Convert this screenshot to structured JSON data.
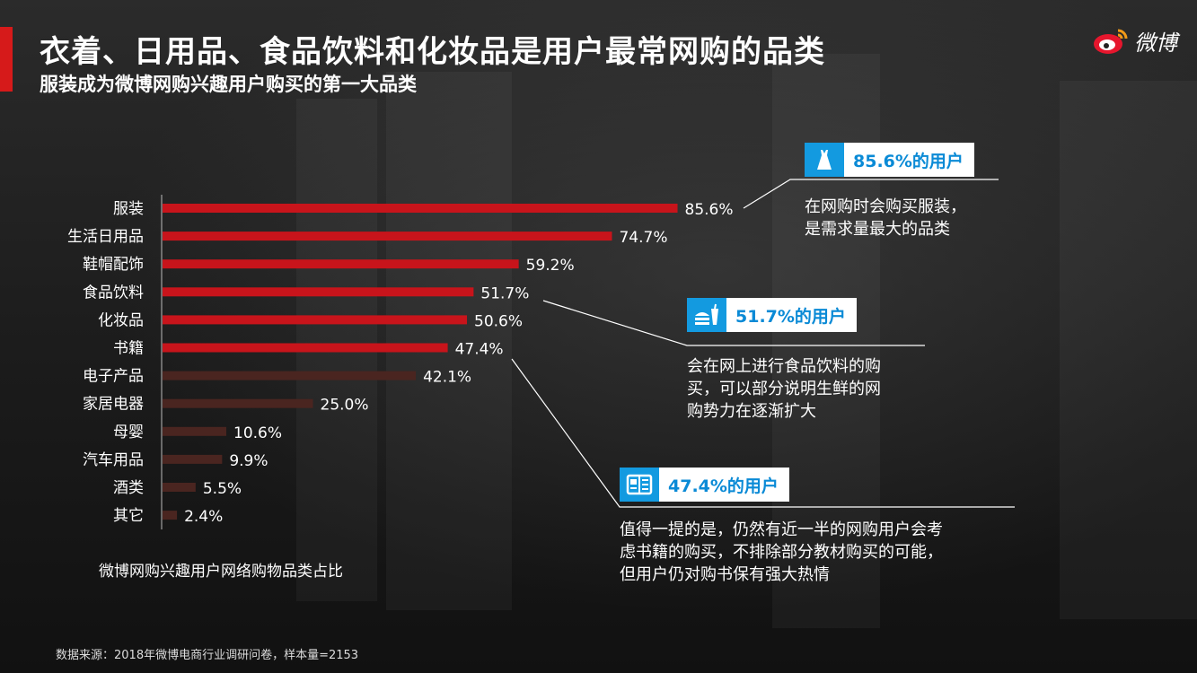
{
  "header": {
    "title": "衣着、日用品、食品饮料和化妆品是用户最常网购的品类",
    "subtitle": "服装成为微博网购兴趣用户购买的第一大品类",
    "logo_text": "微博"
  },
  "chart_data": {
    "type": "bar",
    "orientation": "horizontal",
    "title": "",
    "caption": "微博网购兴趣用户网络购物品类占比",
    "categories": [
      "服装",
      "生活日用品",
      "鞋帽配饰",
      "食品饮料",
      "化妆品",
      "书籍",
      "电子产品",
      "家居电器",
      "母婴",
      "汽车用品",
      "酒类",
      "其它"
    ],
    "values": [
      85.6,
      74.7,
      59.2,
      51.7,
      50.6,
      47.4,
      42.1,
      25.0,
      10.6,
      9.9,
      5.5,
      2.4
    ],
    "value_labels": [
      "85.6%",
      "74.7%",
      "59.2%",
      "51.7%",
      "50.6%",
      "47.4%",
      "42.1%",
      "25.0%",
      "10.6%",
      "9.9%",
      "5.5%",
      "2.4%"
    ],
    "highlight_count": 6,
    "colors": {
      "highlight": "#c8141b",
      "muted": "#4a2520"
    },
    "xlim": [
      0,
      100
    ],
    "grid": false,
    "legend": false
  },
  "callouts": [
    {
      "badge": "85.6%的用户",
      "icon": "dress-icon",
      "lines": [
        "在网购时会购买服装，",
        "是需求量最大的品类"
      ]
    },
    {
      "badge": "51.7%的用户",
      "icon": "fastfood-icon",
      "lines": [
        "会在网上进行食品饮料的购",
        "买，可以部分说明生鲜的网",
        "购势力在逐渐扩大"
      ]
    },
    {
      "badge": "47.4%的用户",
      "icon": "book-icon",
      "lines": [
        "值得一提的是，仍然有近一半的网购用户会考",
        "虑书籍的购买，不排除部分教材购买的可能，",
        "但用户仍对购书保有强大热情"
      ]
    }
  ],
  "footer": {
    "source": "数据来源：2018年微博电商行业调研问卷，样本量=2153"
  },
  "colors": {
    "accent": "#d61a1a",
    "badge_blue": "#139ae0",
    "badge_text": "#0a8ad6"
  }
}
